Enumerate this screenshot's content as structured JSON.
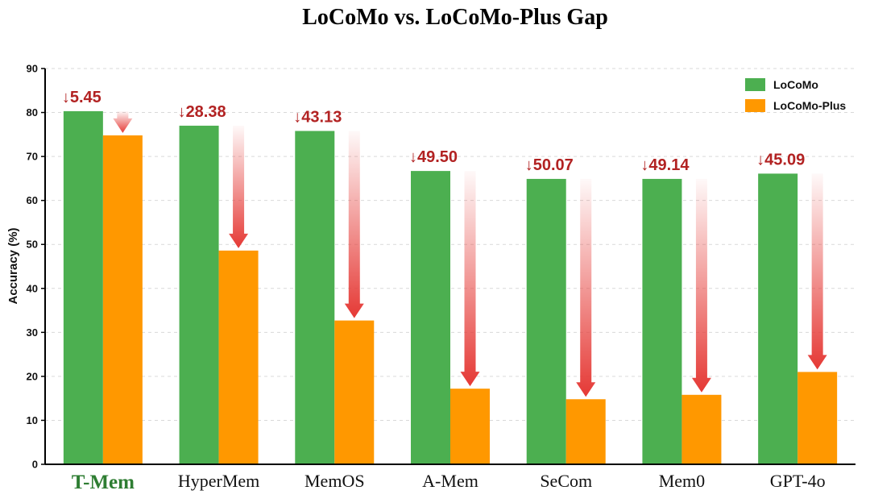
{
  "chart_data": {
    "type": "bar",
    "title": "LoCoMo vs. LoCoMo-Plus Gap",
    "xlabel": "",
    "ylabel": "Accuracy (%)",
    "ylim": [
      0,
      90
    ],
    "yticks": [
      0,
      10,
      20,
      30,
      40,
      50,
      60,
      70,
      80,
      90
    ],
    "grid": true,
    "legend_position": "top-right",
    "highlighted_category": "T-Mem",
    "categories": [
      "T-Mem",
      "HyperMem",
      "MemOS",
      "A-Mem",
      "SeCom",
      "Mem0",
      "GPT-4o"
    ],
    "series": [
      {
        "name": "LoCoMo",
        "color": "#4caf50",
        "values": [
          80.3,
          77.0,
          75.8,
          66.7,
          64.9,
          64.9,
          66.1
        ]
      },
      {
        "name": "LoCoMo-Plus",
        "color": "#ff9800",
        "values": [
          74.8,
          48.6,
          32.7,
          17.2,
          14.8,
          15.8,
          21.0
        ]
      }
    ],
    "annotations": [
      "↓5.45",
      "↓28.38",
      "↓43.13",
      "↓49.50",
      "↓50.07",
      "↓49.14",
      "↓45.09"
    ],
    "annotation_color": "#b22222",
    "arrow_color": "#e53935"
  }
}
